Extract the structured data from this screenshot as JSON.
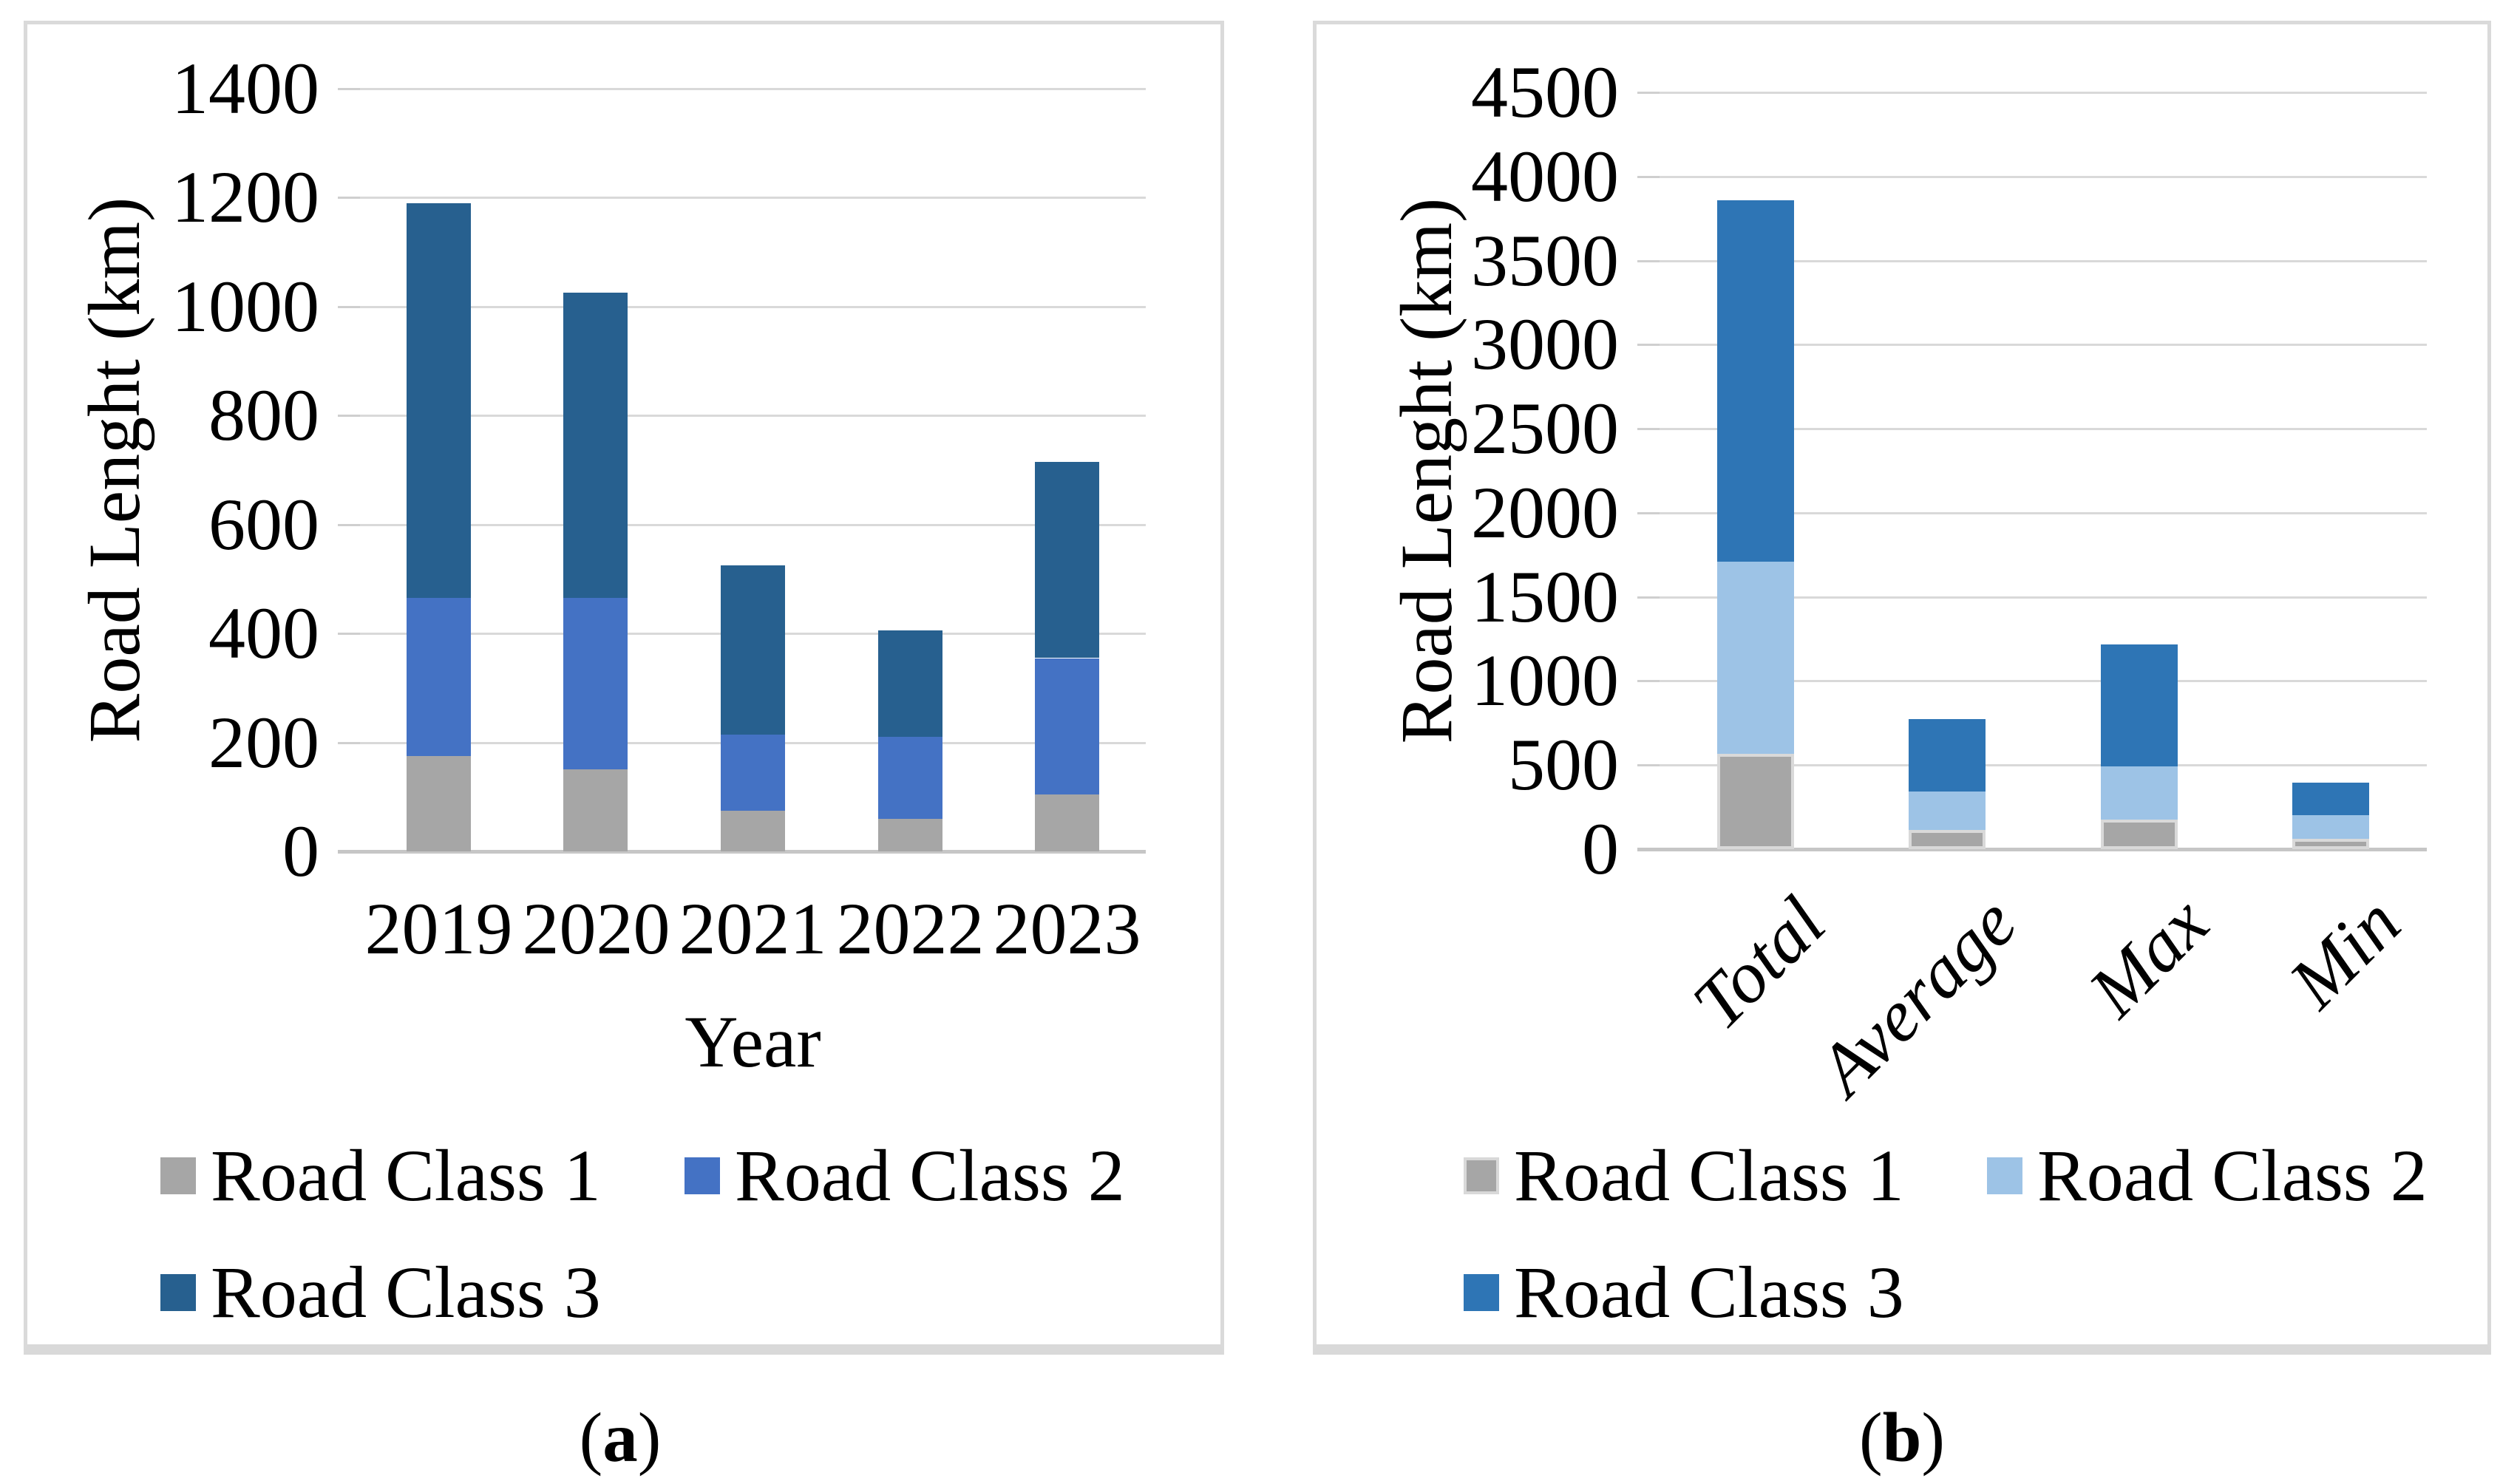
{
  "captions": [
    {
      "open": "(",
      "label": "a",
      "close": ")"
    },
    {
      "open": "(",
      "label": "b",
      "close": ")"
    }
  ],
  "chart_data": [
    {
      "id": "a",
      "type": "bar",
      "stacked": true,
      "title": "",
      "xlabel": "Year",
      "ylabel": "Road Lenght (km)",
      "categories": [
        "2019",
        "2020",
        "2021",
        "2022",
        "2023"
      ],
      "series": [
        {
          "name": "Road Class 1",
          "color": "#A6A6A6",
          "values": [
            175,
            150,
            75,
            60,
            105
          ]
        },
        {
          "name": "Road Class 2",
          "color": "#4472C4",
          "values": [
            290,
            315,
            140,
            150,
            250
          ]
        },
        {
          "name": "Road Class 3",
          "color": "#27608F",
          "values": [
            725,
            560,
            310,
            195,
            360
          ]
        }
      ],
      "ylim": [
        0,
        1400
      ],
      "yticks": [
        0,
        200,
        400,
        600,
        800,
        1000,
        1200,
        1400
      ],
      "grid": true,
      "legend_position": "bottom",
      "category_label_rotation": 0
    },
    {
      "id": "b",
      "type": "bar",
      "stacked": true,
      "title": "",
      "xlabel": "",
      "ylabel": "Road Lenght (km)",
      "categories": [
        "Total",
        "Average",
        "Max",
        "Min"
      ],
      "series": [
        {
          "name": "Road Class 1",
          "color": "#A6A6A6",
          "border": "#D9D9D9",
          "values": [
            565,
            113,
            175,
            60
          ]
        },
        {
          "name": "Road Class 2",
          "color": "#9DC3E6",
          "values": [
            1145,
            229,
            315,
            140
          ]
        },
        {
          "name": "Road Class 3",
          "color": "#2E75B5",
          "values": [
            2150,
            430,
            725,
            195
          ]
        }
      ],
      "ylim": [
        0,
        4500
      ],
      "yticks": [
        0,
        500,
        1000,
        1500,
        2000,
        2500,
        3000,
        3500,
        4000,
        4500
      ],
      "grid": true,
      "legend_position": "bottom",
      "category_label_rotation": -45
    }
  ]
}
